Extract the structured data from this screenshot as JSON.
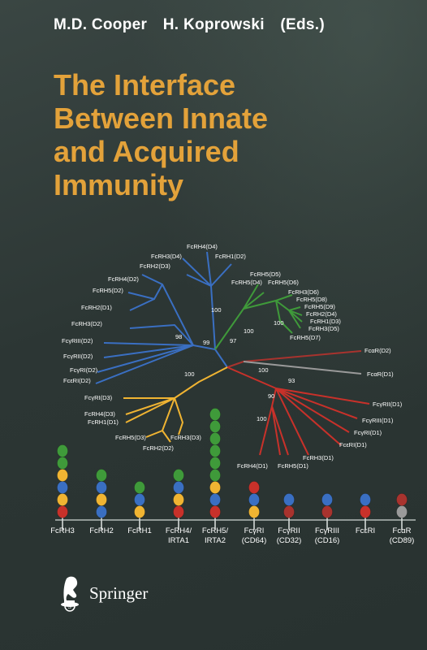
{
  "editors": [
    "M.D. Cooper",
    "H. Koprowski",
    "(Eds.)"
  ],
  "title_lines": [
    "The Interface",
    "Between Innate",
    "and Acquired",
    "Immunity"
  ],
  "publisher": "Springer",
  "colors": {
    "title": "#e3a23a",
    "blue": "#3a6fc2",
    "lightblue": "#3a8fd8",
    "green": "#3f9a3a",
    "red": "#c8312a",
    "orange": "#f0b432",
    "gray": "#9a9a9a",
    "darkred": "#a8332e"
  },
  "tree_labels": [
    "FcRH4(D4)",
    "FcRH3(D4)",
    "FcRH1(D2)",
    "FcRH2(D3)",
    "FcRH4(D2)",
    "FcRH5(D2)",
    "FcRH2(D1)",
    "FcRH3(D2)",
    "FcγRIII(D2)",
    "FcγRII(D2)",
    "FcγRI(D2)",
    "FcεRI(D2)",
    "FcRH5(D5)",
    "FcRH5(D4)",
    "FcRH5(D6)",
    "FcRH3(D6)",
    "FcRH5(D8)",
    "FcRH5(D9)",
    "FcRH2(D4)",
    "FcRH1(D3)",
    "FcRH3(D5)",
    "FcRH5(D7)",
    "FcαR(D2)",
    "FcαR(D1)",
    "FcγRI(D3)",
    "FcRH4(D3)",
    "FcRH1(D1)",
    "FcRH5(D3)",
    "FcRH3(D3)",
    "FcRH2(D2)",
    "FcγRII(D1)",
    "FcγRIII(D1)",
    "FcγRI(D1)",
    "FcεRI(D1)",
    "FcRH3(D1)",
    "FcRH4(D1)",
    "FcRH5(D1)"
  ],
  "bootstrap_values": [
    "100",
    "99",
    "97",
    "98",
    "100",
    "100",
    "100",
    "100",
    "93",
    "90",
    "100"
  ],
  "receptors": [
    {
      "label": [
        "FcRH3",
        ""
      ],
      "domains": [
        "red",
        "orange",
        "blue",
        "orange",
        "green",
        "green"
      ]
    },
    {
      "label": [
        "FcRH2",
        ""
      ],
      "domains": [
        "blue",
        "orange",
        "blue",
        "green"
      ]
    },
    {
      "label": [
        "FcRH1",
        ""
      ],
      "domains": [
        "orange",
        "blue",
        "green"
      ]
    },
    {
      "label": [
        "FcRH4/",
        "IRTA1"
      ],
      "domains": [
        "red",
        "orange",
        "blue",
        "green"
      ]
    },
    {
      "label": [
        "FcRH5/",
        "IRTA2"
      ],
      "domains": [
        "red",
        "blue",
        "orange",
        "green",
        "green",
        "green",
        "green",
        "green",
        "green"
      ]
    },
    {
      "label": [
        "FcγRI",
        "(CD64)"
      ],
      "domains": [
        "orange",
        "blue",
        "red"
      ]
    },
    {
      "label": [
        "FcγRII",
        "(CD32)"
      ],
      "domains": [
        "darkred",
        "blue"
      ]
    },
    {
      "label": [
        "FcγRIII",
        "(CD16)"
      ],
      "domains": [
        "darkred",
        "blue"
      ]
    },
    {
      "label": [
        "FcεRI",
        ""
      ],
      "domains": [
        "red",
        "blue"
      ]
    },
    {
      "label": [
        "FcαR",
        "(CD89)"
      ],
      "domains": [
        "gray",
        "darkred"
      ]
    }
  ]
}
